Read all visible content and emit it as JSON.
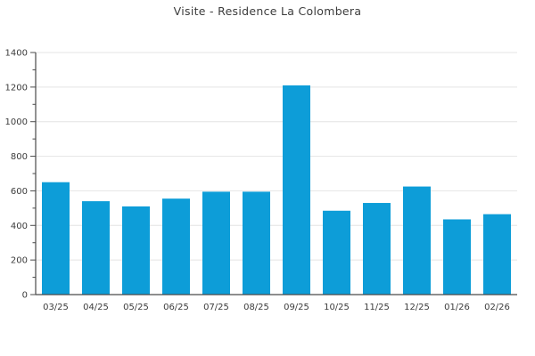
{
  "chart_data": {
    "type": "bar",
    "title": "Visite - Residence La Colombera",
    "categories": [
      "03/25",
      "04/25",
      "05/25",
      "06/25",
      "07/25",
      "08/25",
      "09/25",
      "10/25",
      "11/25",
      "12/25",
      "01/26",
      "02/26"
    ],
    "values": [
      650,
      540,
      510,
      555,
      595,
      595,
      1210,
      485,
      530,
      625,
      435,
      465
    ],
    "xlabel": "",
    "ylabel": "",
    "ylim": [
      0,
      1400
    ],
    "ytick_step": 200,
    "yminor_step": 100,
    "grid": "horizontal-major",
    "legend": "none",
    "colors": {
      "bar": "#0d9dd8",
      "grid": "#e4e4e4",
      "axis": "#4a4a4a",
      "text": "#3c3c3c"
    }
  }
}
